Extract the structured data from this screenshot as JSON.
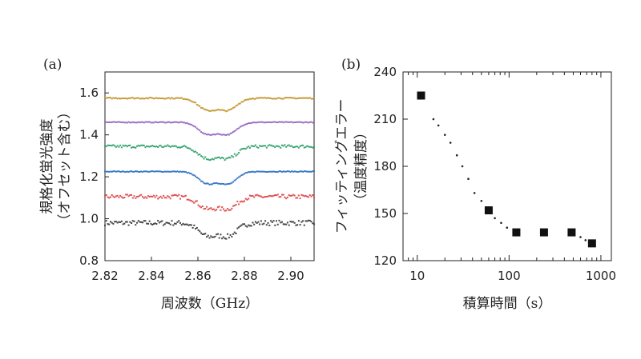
{
  "chart_data": [
    {
      "panel_label": "(a)",
      "type": "line",
      "xlabel": "周波数（GHz）",
      "ylabel": "規格化蛍光強度",
      "ylabel_note": "（オフセット含む）",
      "xlim": [
        2.82,
        2.91
      ],
      "ylim": [
        0.8,
        1.7
      ],
      "xticks": [
        "2.82",
        "2.84",
        "2.86",
        "2.88",
        "2.90"
      ],
      "yticks": [
        "0.8",
        "1.0",
        "1.2",
        "1.4",
        "1.6"
      ],
      "dip_center": 2.8685,
      "series": [
        {
          "color": "#444444",
          "baseline": 0.98,
          "depth": 0.11,
          "noise": 0.012
        },
        {
          "color": "#e05050",
          "baseline": 1.105,
          "depth": 0.1,
          "noise": 0.01
        },
        {
          "color": "#3a7bc8",
          "baseline": 1.225,
          "depth": 0.1,
          "noise": 0.002
        },
        {
          "color": "#3aa672",
          "baseline": 1.345,
          "depth": 0.1,
          "noise": 0.007
        },
        {
          "color": "#9b6fc4",
          "baseline": 1.46,
          "depth": 0.1,
          "noise": 0.002
        },
        {
          "color": "#c79c3a",
          "baseline": 1.575,
          "depth": 0.1,
          "noise": 0.003
        }
      ]
    },
    {
      "panel_label": "(b)",
      "type": "scatter",
      "xlabel": "積算時間（s）",
      "ylabel": "フィッティングエラー",
      "ylabel_note": "（温度精度）",
      "xscale": "log",
      "xlim": [
        7,
        1300
      ],
      "ylim": [
        120,
        240
      ],
      "xticks": [
        {
          "v": 10,
          "label": "10"
        },
        {
          "v": 100,
          "label": "100"
        },
        {
          "v": 1000,
          "label": "1000"
        }
      ],
      "yticks": [
        "120",
        "150",
        "180",
        "210",
        "240"
      ],
      "points": [
        {
          "x": 11,
          "y": 225
        },
        {
          "x": 60,
          "y": 152
        },
        {
          "x": 120,
          "y": 138
        },
        {
          "x": 240,
          "y": 138
        },
        {
          "x": 480,
          "y": 138
        },
        {
          "x": 800,
          "y": 131
        }
      ],
      "fit_dots": [
        {
          "x": 15,
          "y": 210
        },
        {
          "x": 17,
          "y": 206
        },
        {
          "x": 20,
          "y": 200
        },
        {
          "x": 23,
          "y": 195
        },
        {
          "x": 27,
          "y": 187
        },
        {
          "x": 31,
          "y": 180
        },
        {
          "x": 36,
          "y": 172
        },
        {
          "x": 42,
          "y": 163
        },
        {
          "x": 50,
          "y": 158
        },
        {
          "x": 70,
          "y": 147
        },
        {
          "x": 82,
          "y": 144
        },
        {
          "x": 95,
          "y": 141
        },
        {
          "x": 600,
          "y": 135
        },
        {
          "x": 680,
          "y": 133
        }
      ]
    }
  ]
}
